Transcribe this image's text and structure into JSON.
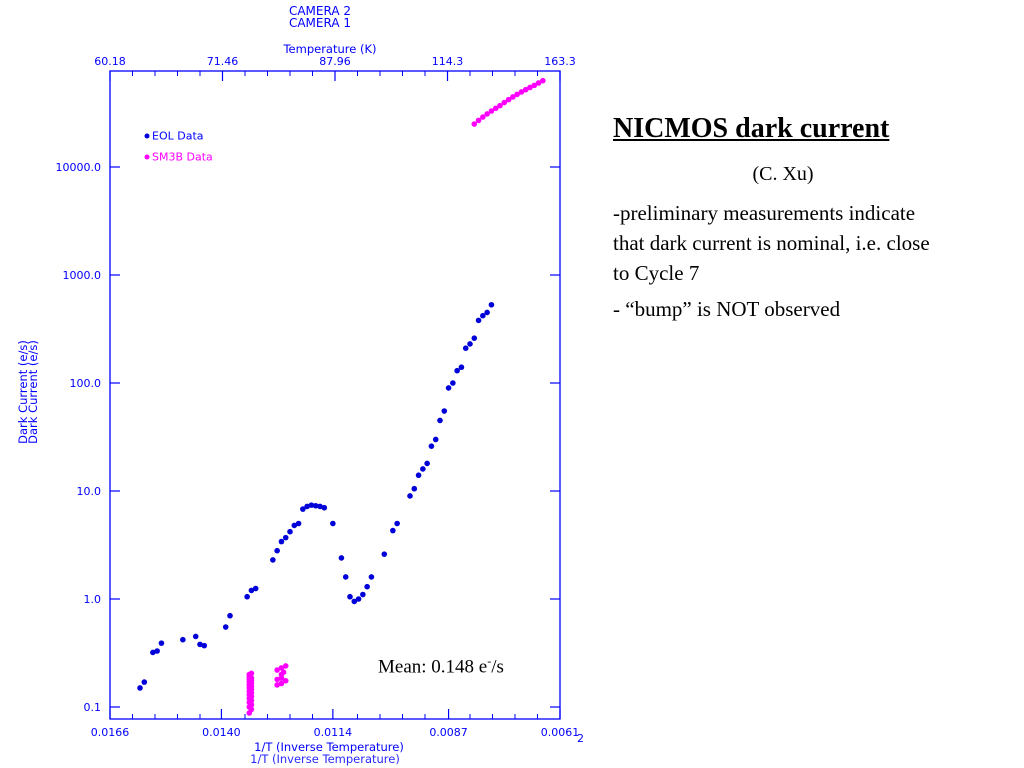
{
  "colors": {
    "axis": "#0000ff",
    "eol": "#0000d8",
    "sm3b": "#ff00ff"
  },
  "chart_data": {
    "type": "scatter",
    "title": "CAMERA 1",
    "title_overlap": "CAMERA 2",
    "ylabel": "Dark Current (e/s)",
    "ylabel_overlap": "Dark Current (e/s)",
    "y_scale": "log",
    "ylim": [
      0.1,
      60000
    ],
    "y_ticks": [
      0.1,
      1,
      10,
      100,
      1000,
      10000
    ],
    "y_tick_labels": [
      "0.1",
      "1.0",
      "10.0",
      "100.0",
      "1000.0",
      "10000.0"
    ],
    "xlabel": "1/T (Inverse Temperature)",
    "xlabel_overlap": "1/T (Inverse Temperature)",
    "xlim": [
      0.0166,
      0.0061
    ],
    "x_ticks": [
      0.0166,
      0.014,
      0.0114,
      0.0087,
      0.0061
    ],
    "x_tick_labels": [
      "0.0166",
      "0.0140",
      "0.0114",
      "0.0087",
      "0.0061"
    ],
    "x_corner_label": "2",
    "top_axis_label": "Temperature (K)",
    "top_ticks": [
      60.18,
      71.46,
      87.96,
      114.3,
      163.3
    ],
    "top_tick_labels": [
      "60.18",
      "71.46",
      "87.96",
      "114.3",
      "163.3"
    ],
    "legend_placement": "top-left",
    "series": [
      {
        "name": "EOL Data",
        "x": [
          0.0159,
          0.0158,
          0.0156,
          0.0155,
          0.0154,
          0.0149,
          0.0146,
          0.0145,
          0.0144,
          0.0139,
          0.0138,
          0.0134,
          0.0133,
          0.0132,
          0.0128,
          0.0127,
          0.0126,
          0.0125,
          0.0124,
          0.0123,
          0.0122,
          0.0121,
          0.012,
          0.0119,
          0.0118,
          0.0117,
          0.0116,
          0.0114,
          0.0112,
          0.0111,
          0.011,
          0.0109,
          0.0108,
          0.0107,
          0.0106,
          0.0105,
          0.0102,
          0.01,
          0.0099,
          0.0096,
          0.0095,
          0.0094,
          0.0093,
          0.0092,
          0.0091,
          0.009,
          0.0089,
          0.0088,
          0.0087,
          0.0086,
          0.0085,
          0.0084,
          0.0083,
          0.0082,
          0.0081,
          0.008,
          0.0079,
          0.0078,
          0.0077
        ],
        "y": [
          0.15,
          0.17,
          0.32,
          0.33,
          0.39,
          0.42,
          0.45,
          0.38,
          0.37,
          0.55,
          0.7,
          1.05,
          1.2,
          1.25,
          2.3,
          2.8,
          3.4,
          3.7,
          4.2,
          4.8,
          5.0,
          6.8,
          7.2,
          7.4,
          7.3,
          7.2,
          7.0,
          5.0,
          2.4,
          1.6,
          1.05,
          0.95,
          1.0,
          1.1,
          1.3,
          1.6,
          2.6,
          4.3,
          5.0,
          9.0,
          10.5,
          14,
          16,
          18,
          26,
          30,
          45,
          55,
          90,
          100,
          130,
          140,
          210,
          230,
          260,
          380,
          420,
          450,
          530
        ]
      },
      {
        "name": "SM3B Data",
        "x": [
          0.01335,
          0.01335,
          0.01335,
          0.01335,
          0.01335,
          0.01335,
          0.01335,
          0.01335,
          0.01335,
          0.01335,
          0.01335,
          0.01335,
          0.0133,
          0.0133,
          0.0133,
          0.0133,
          0.0133,
          0.0133,
          0.0133,
          0.0133,
          0.0133,
          0.0133,
          0.0133,
          0.0127,
          0.0127,
          0.0127,
          0.0126,
          0.0126,
          0.0126,
          0.0126,
          0.01255,
          0.0125,
          0.0125,
          0.0081,
          0.008,
          0.0079,
          0.0078,
          0.0077,
          0.0076,
          0.0075,
          0.0074,
          0.0073,
          0.0072,
          0.0071,
          0.007,
          0.0069,
          0.0068,
          0.0067,
          0.0066,
          0.0065
        ],
        "y": [
          0.088,
          0.1,
          0.11,
          0.12,
          0.13,
          0.14,
          0.15,
          0.16,
          0.17,
          0.18,
          0.19,
          0.2,
          0.095,
          0.105,
          0.115,
          0.125,
          0.135,
          0.145,
          0.155,
          0.165,
          0.175,
          0.185,
          0.205,
          0.16,
          0.18,
          0.22,
          0.165,
          0.185,
          0.2,
          0.23,
          0.21,
          0.24,
          0.175,
          25000,
          27000,
          29000,
          31000,
          33000,
          35000,
          37000,
          39500,
          42000,
          44500,
          47000,
          49500,
          52000,
          54500,
          57000,
          60000,
          63000
        ]
      }
    ]
  },
  "panel": {
    "title": "NICMOS dark current",
    "author": "(C. Xu)",
    "para1": "-preliminary measurements indicate that dark current is nominal, i.e. close to Cycle 7",
    "para2": "- “bump” is NOT observed"
  },
  "mean": {
    "prefix": "Mean: 0.148 e",
    "sup": "-",
    "suffix": "/s"
  }
}
